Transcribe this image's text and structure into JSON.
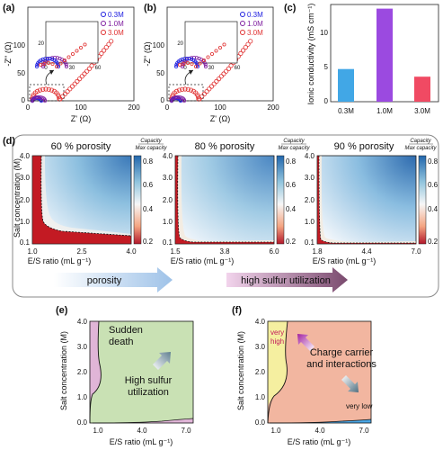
{
  "panel_labels": {
    "a": "(a)",
    "b": "(b)",
    "c": "(c)",
    "d": "(d)",
    "e": "(e)",
    "f": "(f)"
  },
  "colors": {
    "c03": "#2020e0",
    "c10": "#8020a0",
    "c30": "#e03030",
    "bar03": "#41a7e6",
    "bar10": "#9b4ae0",
    "bar30": "#f04a63",
    "green": "#c9e1b4",
    "pink": "#e0b5d7",
    "salmon": "#f2b6a0",
    "yellow": "#f5efa0",
    "blue": "#4aa7e6"
  },
  "nyquist": {
    "xlabel": "Z' (Ω)",
    "ylabel": "-Z'' (Ω)",
    "xticks": [
      "0",
      "100",
      "200"
    ],
    "yticks": [
      "0",
      "50",
      "100"
    ],
    "legend": [
      "0.3M",
      "1.0M",
      "3.0M"
    ],
    "inset_xticks": [
      "0",
      "30",
      "60"
    ],
    "inset_yticks": [
      "0",
      "20"
    ]
  },
  "chart_data": [
    {
      "type": "bar",
      "title": "",
      "categories": [
        "0.3M",
        "1.0M",
        "3.0M"
      ],
      "values": [
        4.7,
        13.4,
        3.6
      ],
      "ylabel": "Ionic conductivity (mS cm⁻¹)",
      "ylim": [
        0,
        14
      ],
      "grid": false
    }
  ],
  "heatmaps": [
    {
      "title": "60 % porosity",
      "xticks": [
        "1.0",
        "2.5",
        "4.0"
      ]
    },
    {
      "title": "80 % porosity",
      "xticks": [
        "1.5",
        "3.8",
        "6.0"
      ]
    },
    {
      "title": "90 % porosity",
      "xticks": [
        "1.8",
        "4.4",
        "7.0"
      ]
    }
  ],
  "heat_y": {
    "label": "Salt concentration (M)",
    "ticks": [
      "4.0",
      "3.0",
      "2.0",
      "1.0",
      "0.1"
    ]
  },
  "heat_x_label": "E/S ratio (mL g⁻¹)",
  "colorbar": {
    "title_num": "Capacity",
    "title_den": "Max capacity",
    "ticks": [
      "0.8",
      "0.6",
      "0.4",
      "0.2"
    ]
  },
  "arrows": {
    "porosity": "porosity",
    "sulfur": "high sulfur utilization"
  },
  "bottom": {
    "ylabel": "Salt concentration (M)",
    "xlabel": "E/S ratio (mL g⁻¹)",
    "yticks": [
      "4.0",
      "3.0",
      "2.0",
      "1.0",
      "0.0"
    ],
    "xticks": [
      "1.0",
      "4.0",
      "7.0"
    ],
    "e_sudden": [
      "Sudden",
      "death"
    ],
    "e_high": [
      "High sulfur",
      "utilization"
    ],
    "f_charge": [
      "Charge carrier",
      "and interactions"
    ],
    "f_veryhigh": [
      "very",
      "high"
    ],
    "f_verylow": "very low"
  }
}
